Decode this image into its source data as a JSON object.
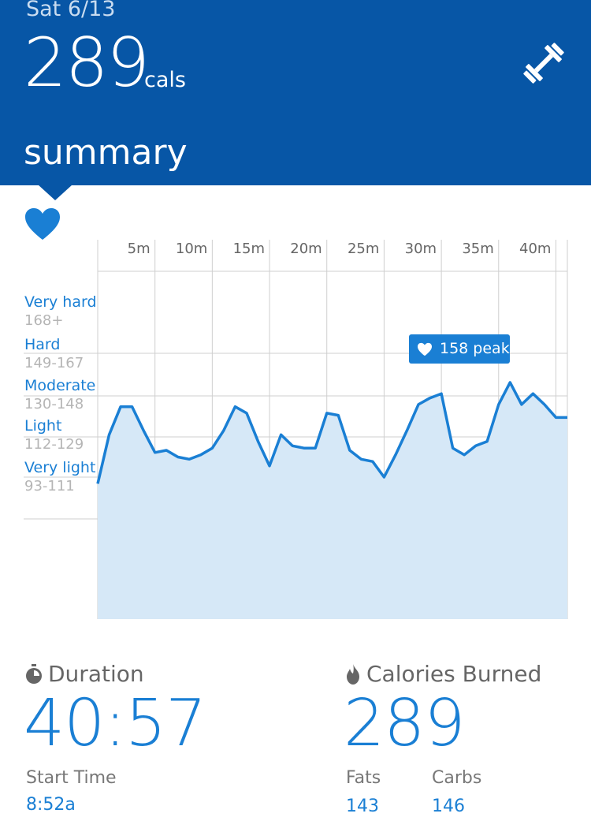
{
  "header": {
    "date": "Sat 6/13",
    "calories": "289",
    "calories_unit": "cals",
    "section_title": "summary"
  },
  "chart": {
    "time_ticks": [
      "5m",
      "10m",
      "15m",
      "20m",
      "25m",
      "30m",
      "35m",
      "40m"
    ],
    "zones": [
      {
        "name": "Very hard",
        "range": "168+"
      },
      {
        "name": "Hard",
        "range": "149-167"
      },
      {
        "name": "Moderate",
        "range": "130-148"
      },
      {
        "name": "Light",
        "range": "112-129"
      },
      {
        "name": "Very light",
        "range": "93-111"
      }
    ],
    "peak_label": "158 peak"
  },
  "chart_data": {
    "type": "area",
    "title": "",
    "xlabel": "",
    "ylabel": "",
    "x_unit": "minutes",
    "xlim": [
      0,
      41
    ],
    "ylim": [
      75,
      185
    ],
    "zone_boundaries": [
      93,
      112,
      130,
      149,
      168
    ],
    "series": [
      {
        "x": [
          0,
          1,
          2,
          3,
          4,
          5,
          6,
          7,
          8,
          9,
          10,
          11,
          12,
          13,
          14,
          15,
          16,
          17,
          18,
          19,
          20,
          21,
          22,
          23,
          24,
          25,
          26,
          27,
          28,
          29,
          30,
          31,
          32,
          33,
          34,
          35,
          36,
          37,
          38,
          39,
          40,
          41
        ],
        "values": [
          109,
          131,
          144,
          144,
          133,
          123,
          124,
          121,
          120,
          122,
          125,
          133,
          144,
          141,
          128,
          117,
          131,
          126,
          125,
          125,
          141,
          140,
          124,
          120,
          119,
          112,
          122,
          133,
          145,
          148,
          150,
          125,
          122,
          126,
          128,
          145,
          155,
          145,
          150,
          145,
          139,
          139
        ]
      }
    ],
    "peak": 158
  },
  "stats": {
    "duration_title": "Duration",
    "duration_value": "40:57",
    "start_time_label": "Start Time",
    "start_time_value": "8:52a",
    "calories_title": "Calories Burned",
    "calories_value": "289",
    "fats_label": "Fats",
    "fats_value": "143",
    "carbs_label": "Carbs",
    "carbs_value": "146"
  },
  "icons": {
    "header_icon": "dumbbell-icon",
    "heart": "heart-icon",
    "duration": "stopwatch-icon",
    "calories": "flame-icon"
  },
  "colors": {
    "header_bg": "#0756a6",
    "accent": "#1a7fd4",
    "area_fill": "#d6e8f7"
  }
}
